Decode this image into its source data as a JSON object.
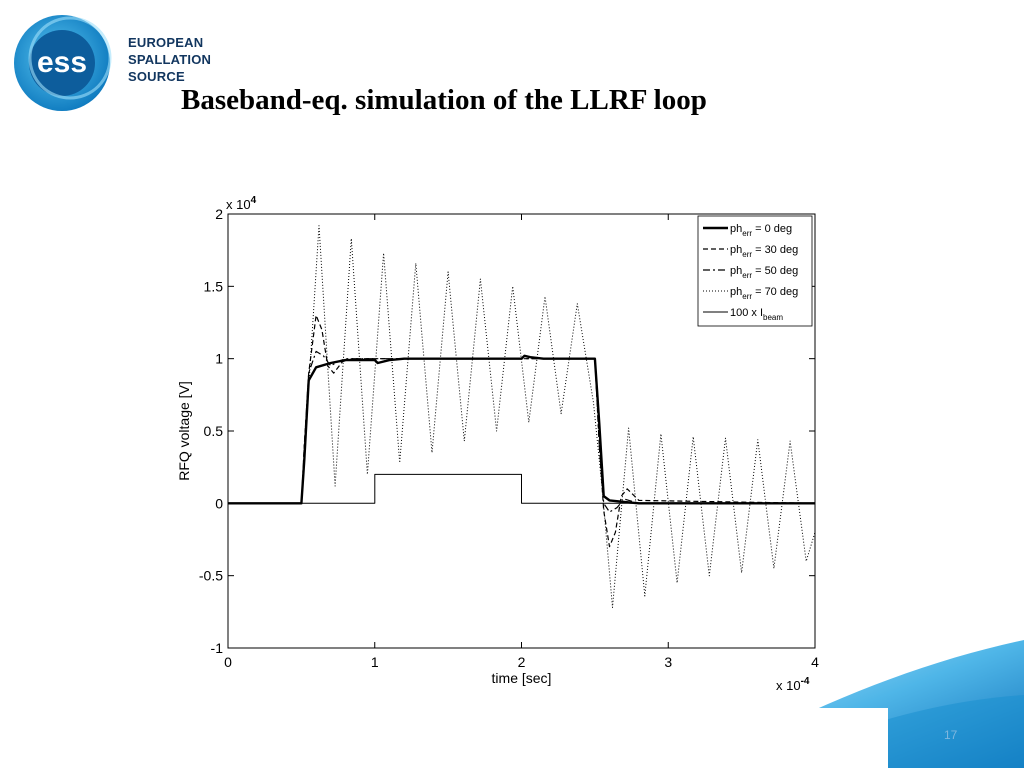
{
  "brand": {
    "logo_mark": "ess",
    "lines": [
      "EUROPEAN",
      "SPALLATION",
      "SOURCE"
    ]
  },
  "slide": {
    "title": "Baseband-eq. simulation of the LLRF loop",
    "page_number": "17"
  },
  "colors": {
    "brand_navy": "#12365f",
    "brand_blue": "#1a8fd0",
    "accent_light": "#8fd3f4"
  },
  "chart_data": {
    "type": "line",
    "xlabel": "time [sec]",
    "ylabel": "RFQ voltage [V]",
    "x_multiplier": "x 10",
    "x_exponent": "-4",
    "y_multiplier": "x 10",
    "y_exponent": "4",
    "xlim": [
      0,
      4
    ],
    "ylim": [
      -1,
      2
    ],
    "xticks": [
      0,
      1,
      2,
      3,
      4
    ],
    "yticks": [
      -1,
      -0.5,
      0,
      0.5,
      1,
      1.5,
      2
    ],
    "ytick_labels": [
      "-1",
      "-0.5",
      "0",
      "0.5",
      "1",
      "1.5",
      "2"
    ],
    "grid": false,
    "legend_position": "top-right",
    "series": [
      {
        "name_base": "ph",
        "name_sub": "err",
        "name_rest": " = 0 deg",
        "style": "solid-thick",
        "points": [
          [
            0,
            0
          ],
          [
            0.5,
            0
          ],
          [
            0.52,
            0.3
          ],
          [
            0.55,
            0.85
          ],
          [
            0.6,
            0.94
          ],
          [
            0.7,
            0.97
          ],
          [
            0.8,
            0.99
          ],
          [
            1.0,
            0.99
          ],
          [
            1.02,
            0.97
          ],
          [
            1.1,
            0.99
          ],
          [
            1.2,
            1.0
          ],
          [
            2.0,
            1.0
          ],
          [
            2.02,
            1.02
          ],
          [
            2.06,
            1.01
          ],
          [
            2.15,
            1.0
          ],
          [
            2.5,
            1.0
          ],
          [
            2.53,
            0.55
          ],
          [
            2.56,
            0.05
          ],
          [
            2.6,
            0.02
          ],
          [
            2.7,
            0.01
          ],
          [
            2.8,
            0.0
          ],
          [
            4.0,
            0.0
          ]
        ]
      },
      {
        "name_base": "ph",
        "name_sub": "err",
        "name_rest": " = 30 deg",
        "style": "dashed",
        "points": [
          [
            0,
            0
          ],
          [
            0.5,
            0
          ],
          [
            0.52,
            0.4
          ],
          [
            0.55,
            0.9
          ],
          [
            0.6,
            1.3
          ],
          [
            0.64,
            1.2
          ],
          [
            0.68,
            0.95
          ],
          [
            0.72,
            0.9
          ],
          [
            0.78,
            0.98
          ],
          [
            0.85,
            1.0
          ],
          [
            2.5,
            1.0
          ],
          [
            2.53,
            0.4
          ],
          [
            2.56,
            -0.05
          ],
          [
            2.6,
            -0.3
          ],
          [
            2.64,
            -0.2
          ],
          [
            2.68,
            0.05
          ],
          [
            2.72,
            0.1
          ],
          [
            2.8,
            0.02
          ],
          [
            4.0,
            0.0
          ]
        ]
      },
      {
        "name_base": "ph",
        "name_sub": "err",
        "name_rest": " = 50 deg",
        "style": "dashdot",
        "points": [
          [
            0,
            0
          ],
          [
            0.5,
            0
          ],
          [
            0.52,
            0.4
          ],
          [
            0.55,
            0.9
          ],
          [
            0.6,
            1.05
          ],
          [
            0.65,
            1.02
          ],
          [
            0.7,
            0.95
          ],
          [
            0.75,
            0.98
          ],
          [
            0.8,
            1.0
          ],
          [
            2.5,
            1.0
          ],
          [
            2.53,
            0.4
          ],
          [
            2.56,
            0.0
          ],
          [
            2.6,
            -0.06
          ],
          [
            2.65,
            -0.03
          ],
          [
            2.7,
            0.03
          ],
          [
            2.8,
            0.0
          ],
          [
            4.0,
            0.0
          ]
        ]
      },
      {
        "name_base": "ph",
        "name_sub": "err",
        "name_rest": " = 70 deg",
        "style": "dotted",
        "points": [
          [
            0,
            0
          ],
          [
            0.5,
            0
          ],
          [
            0.55,
            0.8
          ],
          [
            0.62,
            1.92
          ],
          [
            0.73,
            0.12
          ],
          [
            0.84,
            1.83
          ],
          [
            0.95,
            0.2
          ],
          [
            1.06,
            1.73
          ],
          [
            1.17,
            0.28
          ],
          [
            1.28,
            1.66
          ],
          [
            1.39,
            0.35
          ],
          [
            1.5,
            1.6
          ],
          [
            1.61,
            0.43
          ],
          [
            1.72,
            1.55
          ],
          [
            1.83,
            0.5
          ],
          [
            1.94,
            1.5
          ],
          [
            2.05,
            0.56
          ],
          [
            2.16,
            1.43
          ],
          [
            2.27,
            0.62
          ],
          [
            2.38,
            1.38
          ],
          [
            2.49,
            0.7
          ],
          [
            2.55,
            0.1
          ],
          [
            2.62,
            -0.72
          ],
          [
            2.73,
            0.52
          ],
          [
            2.84,
            -0.64
          ],
          [
            2.95,
            0.48
          ],
          [
            3.06,
            -0.55
          ],
          [
            3.17,
            0.46
          ],
          [
            3.28,
            -0.5
          ],
          [
            3.39,
            0.45
          ],
          [
            3.5,
            -0.48
          ],
          [
            3.61,
            0.44
          ],
          [
            3.72,
            -0.45
          ],
          [
            3.83,
            0.43
          ],
          [
            3.94,
            -0.4
          ],
          [
            4.0,
            -0.2
          ]
        ]
      },
      {
        "name_base": "100 x I",
        "name_sub": "beam",
        "name_rest": "",
        "style": "solid-thin",
        "points": [
          [
            0,
            0
          ],
          [
            1.0,
            0
          ],
          [
            1.0,
            0.2
          ],
          [
            2.0,
            0.2
          ],
          [
            2.0,
            0
          ],
          [
            4.0,
            0
          ]
        ]
      }
    ]
  }
}
